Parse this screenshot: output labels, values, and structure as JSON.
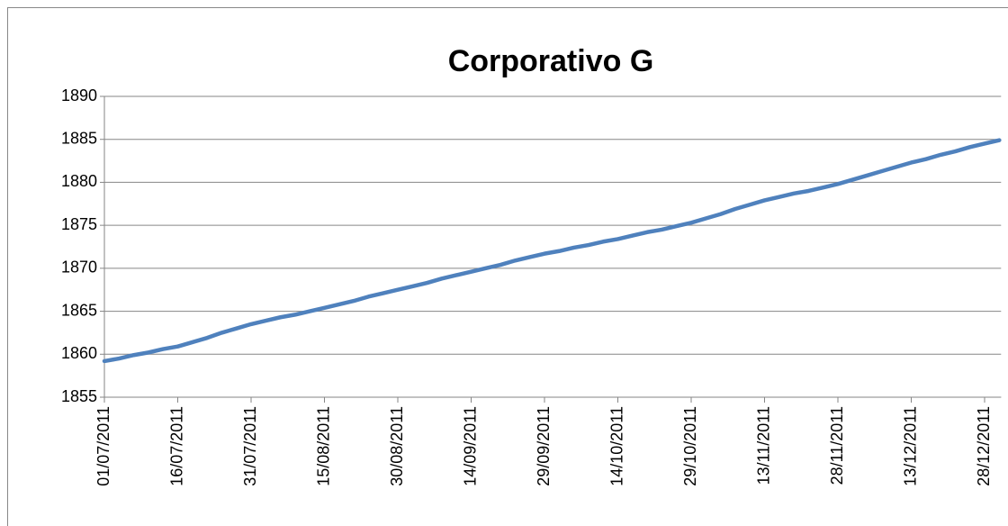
{
  "chart_data": {
    "type": "line",
    "title": "Corporativo G",
    "categories": [
      "01/07/2011",
      null,
      null,
      null,
      null,
      "16/07/2011",
      null,
      null,
      null,
      null,
      "31/07/2011",
      null,
      null,
      null,
      null,
      "15/08/2011",
      null,
      null,
      null,
      null,
      "30/08/2011",
      null,
      null,
      null,
      null,
      "14/09/2011",
      null,
      null,
      null,
      null,
      "29/09/2011",
      null,
      null,
      null,
      null,
      "14/10/2011",
      null,
      null,
      null,
      null,
      "29/10/2011",
      null,
      null,
      null,
      null,
      "13/11/2011",
      null,
      null,
      null,
      null,
      "28/11/2011",
      null,
      null,
      null,
      null,
      "13/12/2011",
      null,
      null,
      null,
      null,
      "28/12/2011",
      null
    ],
    "series": [
      {
        "color": "#4f81bd",
        "values": [
          1859.2,
          1859.5,
          1859.9,
          1860.2,
          1860.6,
          1860.9,
          1861.4,
          1861.9,
          1862.5,
          1863.0,
          1863.5,
          1863.9,
          1864.3,
          1864.6,
          1865.0,
          1865.4,
          1865.8,
          1866.2,
          1866.7,
          1867.1,
          1867.5,
          1867.9,
          1868.3,
          1868.8,
          1869.2,
          1869.6,
          1870.0,
          1870.4,
          1870.9,
          1871.3,
          1871.7,
          1872.0,
          1872.4,
          1872.7,
          1873.1,
          1873.4,
          1873.8,
          1874.2,
          1874.5,
          1874.9,
          1875.3,
          1875.8,
          1876.3,
          1876.9,
          1877.4,
          1877.9,
          1878.3,
          1878.7,
          1879.0,
          1879.4,
          1879.8,
          1880.3,
          1880.8,
          1881.3,
          1881.8,
          1882.3,
          1882.7,
          1883.2,
          1883.6,
          1884.1,
          1884.5,
          1884.9
        ]
      }
    ],
    "ylim": [
      1855,
      1890
    ],
    "yticks": [
      1855,
      1860,
      1865,
      1870,
      1875,
      1880,
      1885,
      1890
    ],
    "grid": true
  }
}
